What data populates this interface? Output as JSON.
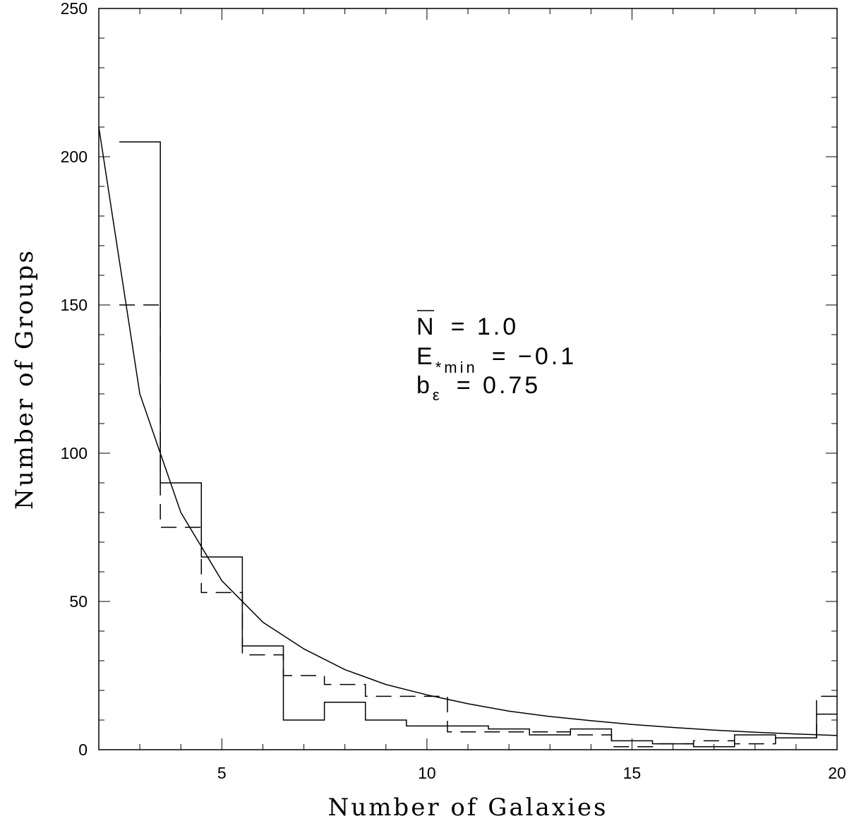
{
  "chart_data": {
    "type": "line",
    "title": "",
    "xlabel": "Number of Galaxies",
    "ylabel": "Number of Groups",
    "xlim": [
      2,
      20
    ],
    "ylim": [
      0,
      250
    ],
    "x_ticks": [
      5,
      10,
      15,
      20
    ],
    "x_tick_labels": [
      "5",
      "10",
      "15",
      "20"
    ],
    "y_ticks": [
      0,
      50,
      100,
      150,
      200,
      250
    ],
    "y_tick_labels": [
      "0",
      "50",
      "100",
      "150",
      "200",
      "250"
    ],
    "grid": false,
    "annotation": {
      "line1": {
        "symbol": "N",
        "rest": "= 1.0"
      },
      "line2": {
        "symbol": "E",
        "subscript": "*min",
        "rest": "= −0.1"
      },
      "line3": {
        "symbol": "b",
        "subscript": "ε",
        "rest": "= 0.75"
      }
    },
    "series": [
      {
        "style": "solid-step",
        "edges": [
          2.5,
          3.5,
          4.5,
          5.5,
          6.5,
          7.5,
          8.5,
          9.5,
          10.5,
          11.5,
          12.5,
          13.5,
          14.5,
          15.5,
          16.5,
          17.5,
          18.5,
          19.5,
          20.0
        ],
        "values": [
          205,
          90,
          65,
          35,
          10,
          16,
          10,
          8,
          8,
          7,
          5,
          7,
          3,
          2,
          1,
          5,
          4,
          12
        ]
      },
      {
        "style": "dashed-step",
        "edges": [
          2.5,
          3.5,
          4.5,
          5.5,
          6.5,
          7.5,
          8.5,
          9.5,
          10.5,
          11.5,
          12.5,
          13.5,
          14.5,
          15.5,
          16.5,
          17.5,
          18.5,
          19.5,
          20.0
        ],
        "values": [
          150,
          75,
          53,
          32,
          25,
          22,
          18,
          18,
          6,
          6,
          6,
          5,
          1,
          2,
          3,
          2,
          4,
          18
        ]
      },
      {
        "style": "solid-curve",
        "x": [
          2,
          3,
          4,
          5,
          6,
          7,
          8,
          9,
          10,
          11,
          12,
          13,
          14,
          15,
          16,
          17,
          18,
          19,
          20
        ],
        "y": [
          210,
          120,
          80,
          57,
          43,
          34,
          27,
          22,
          18.5,
          15.5,
          13,
          11.2,
          9.8,
          8.5,
          7.5,
          6.6,
          5.9,
          5.3,
          4.8
        ]
      }
    ]
  }
}
